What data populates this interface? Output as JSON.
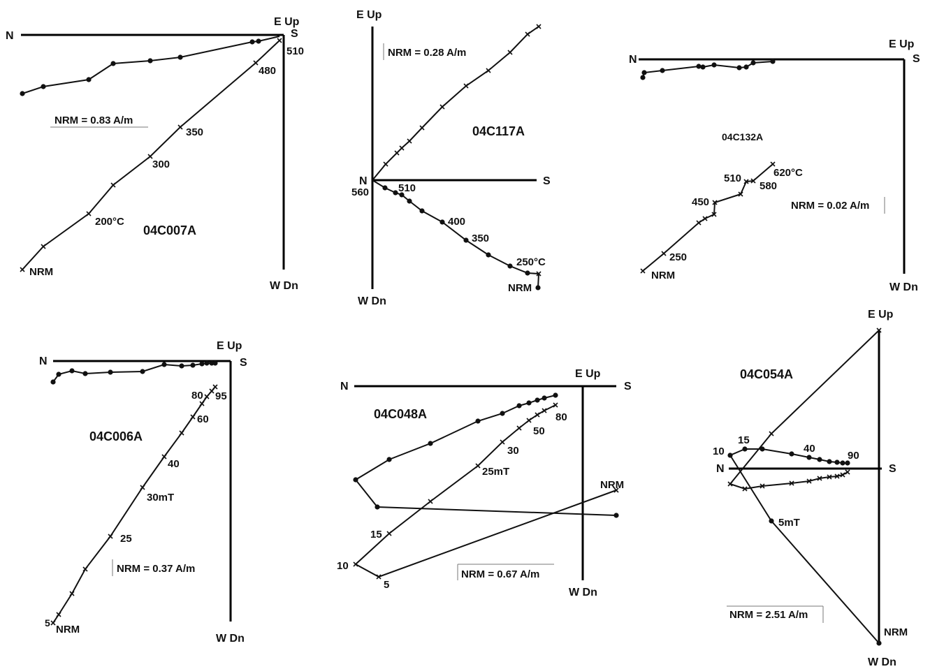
{
  "diagrams": [
    {
      "id": "04C007A",
      "sample": "04C007A",
      "nrm": "NRM = 0.83 A/m",
      "axis_labels": {
        "left": "N",
        "right": "S",
        "top": "E  Up",
        "bottom": "W  Dn"
      },
      "step_labels": [
        "510",
        "480",
        "350",
        "300",
        "200°C",
        "NRM"
      ]
    },
    {
      "id": "04C117A",
      "sample": "04C117A",
      "nrm": "NRM = 0.28 A/m",
      "axis_labels": {
        "left": "N",
        "right": "S",
        "top": "E  Up",
        "bottom": "W  Dn"
      },
      "step_labels": [
        "560",
        "510",
        "400",
        "350",
        "250°C",
        "NRM"
      ]
    },
    {
      "id": "04C132A",
      "sample": "04C132A",
      "nrm": "NRM = 0.02 A/m",
      "axis_labels": {
        "left": "N",
        "right": "S",
        "top": "E  Up",
        "bottom": "W  Dn"
      },
      "step_labels": [
        "620°C",
        "510",
        "580",
        "450",
        "250",
        "NRM"
      ]
    },
    {
      "id": "04C006A",
      "sample": "04C006A",
      "nrm": "NRM = 0.37 A/m",
      "axis_labels": {
        "left": "N",
        "right": "S",
        "top": "E  Up",
        "bottom": "W  Dn"
      },
      "step_labels": [
        "80",
        "95",
        "60",
        "40",
        "30mT",
        "25",
        "5",
        "NRM"
      ]
    },
    {
      "id": "04C048A",
      "sample": "04C048A",
      "nrm": "NRM = 0.67 A/m",
      "axis_labels": {
        "left": "N",
        "right": "S",
        "top": "E  Up",
        "bottom": "W  Dn"
      },
      "step_labels": [
        "80",
        "50",
        "30",
        "25mT",
        "NRM",
        "15",
        "10",
        "5"
      ]
    },
    {
      "id": "04C054A",
      "sample": "04C054A",
      "nrm": "NRM = 2.51 A/m",
      "axis_labels": {
        "left": "N",
        "right": "S",
        "top": "E  Up",
        "bottom": "W  Dn"
      },
      "step_labels": [
        "10",
        "15",
        "40",
        "90",
        "5mT",
        "NRM"
      ]
    }
  ]
}
